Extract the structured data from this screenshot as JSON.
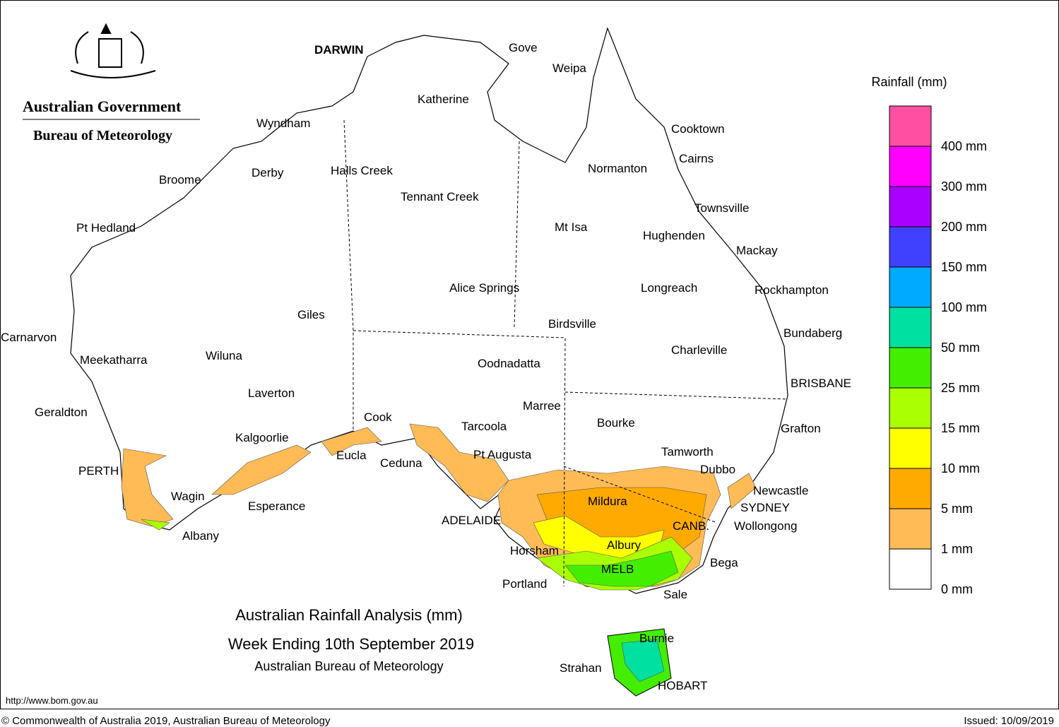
{
  "header": {
    "government": "Australian Government",
    "agency": "Bureau of Meteorology"
  },
  "title": {
    "line1": "Australian Rainfall Analysis (mm)",
    "line2": "Week Ending 10th September 2019",
    "line3": "Australian Bureau of Meteorology"
  },
  "legend": {
    "title": "Rainfall (mm)",
    "colors": [
      "#ff4fa3",
      "#ff00ff",
      "#aa00ff",
      "#4040ff",
      "#00aaff",
      "#00e0a0",
      "#44ee00",
      "#aaff00",
      "#ffff00",
      "#ffaa00",
      "#ffbb55",
      "#ffffff"
    ],
    "labels": [
      "400 mm",
      "300 mm",
      "200 mm",
      "150 mm",
      "100 mm",
      "50 mm",
      "25 mm",
      "15 mm",
      "10 mm",
      "5 mm",
      "1 mm",
      "0 mm"
    ]
  },
  "places": [
    "DARWIN",
    "Gove",
    "Weipa",
    "Katherine",
    "Wyndham",
    "Cooktown",
    "Cairns",
    "Normanton",
    "Derby",
    "Halls Creek",
    "Broome",
    "Tennant Creek",
    "Townsville",
    "Pt Hedland",
    "Mt Isa",
    "Hughenden",
    "Mackay",
    "Alice Springs",
    "Longreach",
    "Rockhampton",
    "Giles",
    "Birdsville",
    "Bundaberg",
    "Carnarvon",
    "Charleville",
    "Meekatharra",
    "Wiluna",
    "Oodnadatta",
    "BRISBANE",
    "Laverton",
    "Marree",
    "Geraldton",
    "Cook",
    "Tarcoola",
    "Bourke",
    "Grafton",
    "Kalgoorlie",
    "Eucla",
    "Pt Augusta",
    "Tamworth",
    "Ceduna",
    "PERTH",
    "Dubbo",
    "Newcastle",
    "Wagin",
    "Mildura",
    "SYDNEY",
    "Esperance",
    "ADELAIDE",
    "CANB.",
    "Wollongong",
    "Albany",
    "Albury",
    "Horsham",
    "Bega",
    "MELB",
    "Portland",
    "Sale",
    "Burnie",
    "Strahan",
    "HOBART"
  ],
  "footer": {
    "url": "http://www.bom.gov.au",
    "copyright": "© Commonwealth of Australia 2019, Australian Bureau of Meteorology",
    "issued": "Issued: 10/09/2019"
  }
}
